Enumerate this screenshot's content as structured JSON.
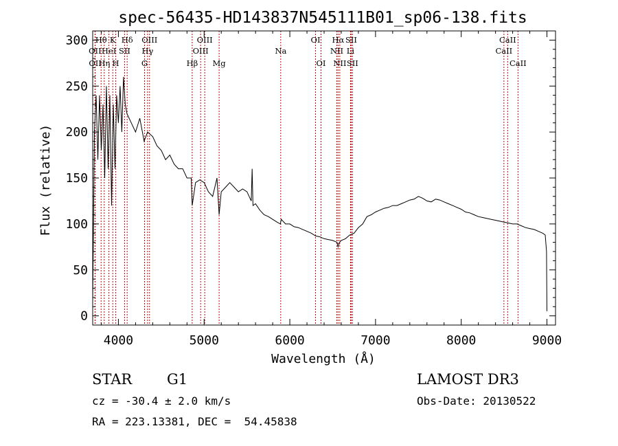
{
  "chart_data": {
    "type": "line",
    "title": "spec-56435-HD143837N545111B01_sp06-138.fits",
    "xlabel": "Wavelength (Å)",
    "ylabel": "Flux (relative)",
    "xlim": [
      3700,
      9100
    ],
    "ylim": [
      -10,
      310
    ],
    "xticks": [
      4000,
      5000,
      6000,
      7000,
      8000,
      9000
    ],
    "yticks": [
      0,
      50,
      100,
      150,
      200,
      250,
      300
    ],
    "series": [
      {
        "name": "spectrum",
        "x": [
          3700,
          3720,
          3740,
          3760,
          3780,
          3800,
          3820,
          3840,
          3860,
          3880,
          3900,
          3920,
          3940,
          3960,
          3980,
          4000,
          4020,
          4040,
          4060,
          4080,
          4100,
          4150,
          4200,
          4250,
          4300,
          4340,
          4400,
          4450,
          4500,
          4550,
          4600,
          4650,
          4700,
          4750,
          4800,
          4850,
          4861,
          4900,
          4950,
          5000,
          5050,
          5100,
          5150,
          5175,
          5200,
          5250,
          5300,
          5350,
          5400,
          5450,
          5500,
          5550,
          5560,
          5570,
          5600,
          5650,
          5700,
          5750,
          5800,
          5850,
          5890,
          5900,
          5950,
          6000,
          6050,
          6100,
          6150,
          6200,
          6250,
          6300,
          6350,
          6400,
          6450,
          6500,
          6550,
          6563,
          6580,
          6600,
          6650,
          6700,
          6750,
          6800,
          6850,
          6900,
          6950,
          7000,
          7050,
          7100,
          7150,
          7200,
          7250,
          7300,
          7350,
          7400,
          7450,
          7500,
          7550,
          7600,
          7650,
          7700,
          7750,
          7800,
          7850,
          7900,
          7950,
          8000,
          8050,
          8100,
          8150,
          8200,
          8250,
          8300,
          8350,
          8400,
          8450,
          8500,
          8550,
          8600,
          8650,
          8700,
          8750,
          8800,
          8850,
          8900,
          8950,
          8980,
          8995,
          9000
        ],
        "values": [
          15,
          200,
          240,
          170,
          240,
          180,
          230,
          150,
          250,
          160,
          240,
          120,
          230,
          160,
          240,
          210,
          250,
          200,
          260,
          230,
          220,
          210,
          200,
          215,
          190,
          200,
          195,
          185,
          180,
          170,
          175,
          165,
          160,
          160,
          150,
          150,
          120,
          145,
          148,
          145,
          135,
          130,
          150,
          110,
          135,
          140,
          145,
          140,
          135,
          138,
          135,
          125,
          160,
          120,
          122,
          115,
          110,
          108,
          105,
          102,
          100,
          105,
          100,
          100,
          97,
          96,
          94,
          92,
          90,
          87,
          86,
          84,
          83,
          82,
          80,
          75,
          80,
          82,
          84,
          88,
          90,
          96,
          100,
          108,
          110,
          113,
          115,
          117,
          118,
          120,
          120,
          122,
          124,
          126,
          127,
          130,
          128,
          125,
          124,
          127,
          126,
          124,
          122,
          120,
          118,
          116,
          113,
          112,
          110,
          108,
          107,
          106,
          105,
          104,
          103,
          102,
          101,
          100,
          100,
          98,
          96,
          95,
          94,
          92,
          90,
          88,
          70,
          5
        ]
      }
    ],
    "line_markers": [
      {
        "label": "OII",
        "x": 3727,
        "row": 2
      },
      {
        "label": "OII",
        "x": 3729,
        "row": 3
      },
      {
        "label": "Hθ",
        "x": 3798,
        "row": 1
      },
      {
        "label": "Hη",
        "x": 3835,
        "row": 3
      },
      {
        "label": "HeI",
        "x": 3889,
        "row": 2
      },
      {
        "label": "K",
        "x": 3934,
        "row": 1
      },
      {
        "label": "H",
        "x": 3969,
        "row": 3
      },
      {
        "label": "SII",
        "x": 4072,
        "row": 2
      },
      {
        "label": "Hδ",
        "x": 4102,
        "row": 1
      },
      {
        "label": "OIII",
        "x": 4363,
        "row": 1
      },
      {
        "label": "Hγ",
        "x": 4340,
        "row": 2
      },
      {
        "label": "G",
        "x": 4305,
        "row": 3
      },
      {
        "label": "Hβ",
        "x": 4861,
        "row": 3
      },
      {
        "label": "OIII",
        "x": 4959,
        "row": 2
      },
      {
        "label": "OIII",
        "x": 5007,
        "row": 1
      },
      {
        "label": "Mg",
        "x": 5175,
        "row": 3
      },
      {
        "label": "Na",
        "x": 5894,
        "row": 2
      },
      {
        "label": "OI",
        "x": 6300,
        "row": 1
      },
      {
        "label": "OI",
        "x": 6364,
        "row": 3
      },
      {
        "label": "NII",
        "x": 6548,
        "row": 2
      },
      {
        "label": "Hα",
        "x": 6563,
        "row": 1
      },
      {
        "label": "NII",
        "x": 6583,
        "row": 3
      },
      {
        "label": "SII",
        "x": 6716,
        "row": 1
      },
      {
        "label": "Li",
        "x": 6708,
        "row": 2
      },
      {
        "label": "SII",
        "x": 6731,
        "row": 3
      },
      {
        "label": "CaII",
        "x": 8498,
        "row": 2
      },
      {
        "label": "CaII",
        "x": 8542,
        "row": 1
      },
      {
        "label": "CaII",
        "x": 8662,
        "row": 3
      }
    ]
  },
  "info": {
    "class_label": "STAR",
    "subclass": "G1",
    "survey": "LAMOST DR3",
    "cz": "cz = -30.4 ± 2.0 km/s",
    "obs_date": "Obs-Date: 20130522",
    "coords": "RA = 223.13381, DEC =  54.45838"
  },
  "colors": {
    "marker_line": "#c00000",
    "spectrum": "#000000",
    "axis": "#000000"
  }
}
